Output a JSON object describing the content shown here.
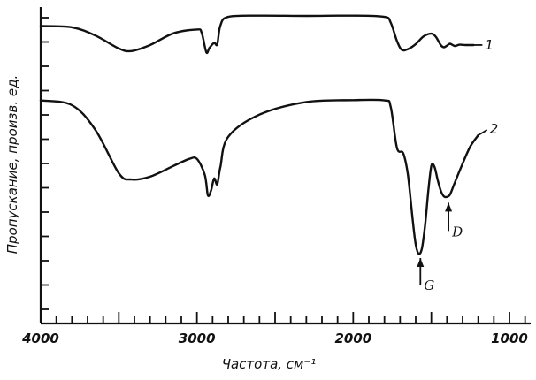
{
  "chart_data": {
    "type": "line",
    "xlabel": "Частота, см⁻¹",
    "ylabel": "Пропускание, произв. ед.",
    "xlim": [
      4000,
      800
    ],
    "ylim": [
      0,
      1
    ],
    "x_tick_labels": [
      {
        "value": 4000,
        "label": "4000"
      },
      {
        "value": 3000,
        "label": "3000"
      },
      {
        "value": 2000,
        "label": "2000"
      },
      {
        "value": 1000,
        "label": "1000"
      }
    ],
    "grid": false,
    "series": [
      {
        "name": "1",
        "x": [
          4000,
          3800,
          3650,
          3500,
          3420,
          3300,
          3150,
          3000,
          2970,
          2940,
          2920,
          2890,
          2870,
          2850,
          2800,
          2600,
          2300,
          2000,
          1800,
          1760,
          1720,
          1690,
          1650,
          1600,
          1550,
          1500,
          1470,
          1440,
          1420,
          1400,
          1380,
          1350,
          1320,
          1280,
          1230
        ],
        "y": [
          0.94,
          0.936,
          0.91,
          0.869,
          0.861,
          0.88,
          0.917,
          0.929,
          0.919,
          0.857,
          0.871,
          0.887,
          0.882,
          0.942,
          0.969,
          0.973,
          0.972,
          0.973,
          0.969,
          0.951,
          0.893,
          0.865,
          0.867,
          0.883,
          0.907,
          0.916,
          0.905,
          0.88,
          0.873,
          0.878,
          0.884,
          0.877,
          0.881,
          0.88,
          0.88
        ]
      },
      {
        "name": "2",
        "x": [
          4000,
          3800,
          3650,
          3500,
          3420,
          3300,
          3150,
          3050,
          3000,
          2950,
          2930,
          2910,
          2890,
          2870,
          2850,
          2800,
          2600,
          2300,
          2000,
          1800,
          1760,
          1720,
          1680,
          1650,
          1620,
          1600,
          1580,
          1560,
          1540,
          1520,
          1500,
          1480,
          1460,
          1440,
          1420,
          1400,
          1380,
          1350,
          1300,
          1250,
          1200
        ],
        "y": [
          0.705,
          0.69,
          0.612,
          0.475,
          0.455,
          0.464,
          0.498,
          0.52,
          0.52,
          0.47,
          0.405,
          0.42,
          0.458,
          0.44,
          0.495,
          0.59,
          0.66,
          0.7,
          0.706,
          0.705,
          0.685,
          0.555,
          0.538,
          0.47,
          0.33,
          0.25,
          0.22,
          0.238,
          0.31,
          0.415,
          0.498,
          0.495,
          0.455,
          0.42,
          0.402,
          0.4,
          0.408,
          0.445,
          0.505,
          0.56,
          0.595
        ]
      }
    ],
    "annotations": [
      {
        "label": "G",
        "x": 1570
      },
      {
        "label": "D",
        "x": 1390
      }
    ]
  }
}
